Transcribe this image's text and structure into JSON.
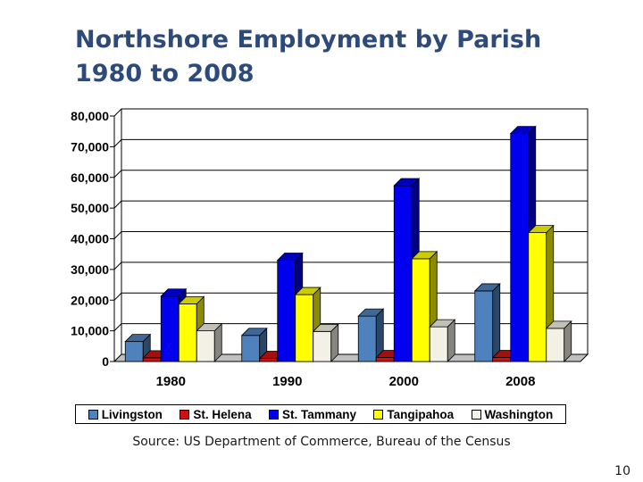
{
  "slide": {
    "title_line1": "Northshore Employment by Parish",
    "title_line2": "1980 to 2008",
    "source": "Source: US Department of Commerce, Bureau of the Census",
    "page_number": "10"
  },
  "chart_data": {
    "type": "bar",
    "title": "Northshore Employment by Parish 1980 to 2008",
    "categories": [
      "1980",
      "1990",
      "2000",
      "2008"
    ],
    "ylim": [
      0,
      80000
    ],
    "yticks": [
      "0",
      "10,000",
      "20,000",
      "30,000",
      "40,000",
      "50,000",
      "60,000",
      "70,000",
      "80,000"
    ],
    "ytick_values": [
      0,
      10000,
      20000,
      30000,
      40000,
      50000,
      60000,
      70000,
      80000
    ],
    "grid": true,
    "legend_position": "bottom",
    "series": [
      {
        "name": "Livingston",
        "color": "#4f81bd",
        "values": [
          6500,
          8500,
          14800,
          23000
        ]
      },
      {
        "name": "St. Helena",
        "color": "#cc1111",
        "values": [
          1200,
          1000,
          1300,
          1300
        ]
      },
      {
        "name": "St. Tammany",
        "color": "#0000ee",
        "values": [
          21300,
          33000,
          57300,
          74300
        ]
      },
      {
        "name": "Tangipahoa",
        "color": "#ffff00",
        "values": [
          18800,
          21800,
          33500,
          42000
        ]
      },
      {
        "name": "Washington",
        "color": "#f3f1e6",
        "values": [
          10000,
          9800,
          11300,
          10800
        ]
      }
    ]
  }
}
